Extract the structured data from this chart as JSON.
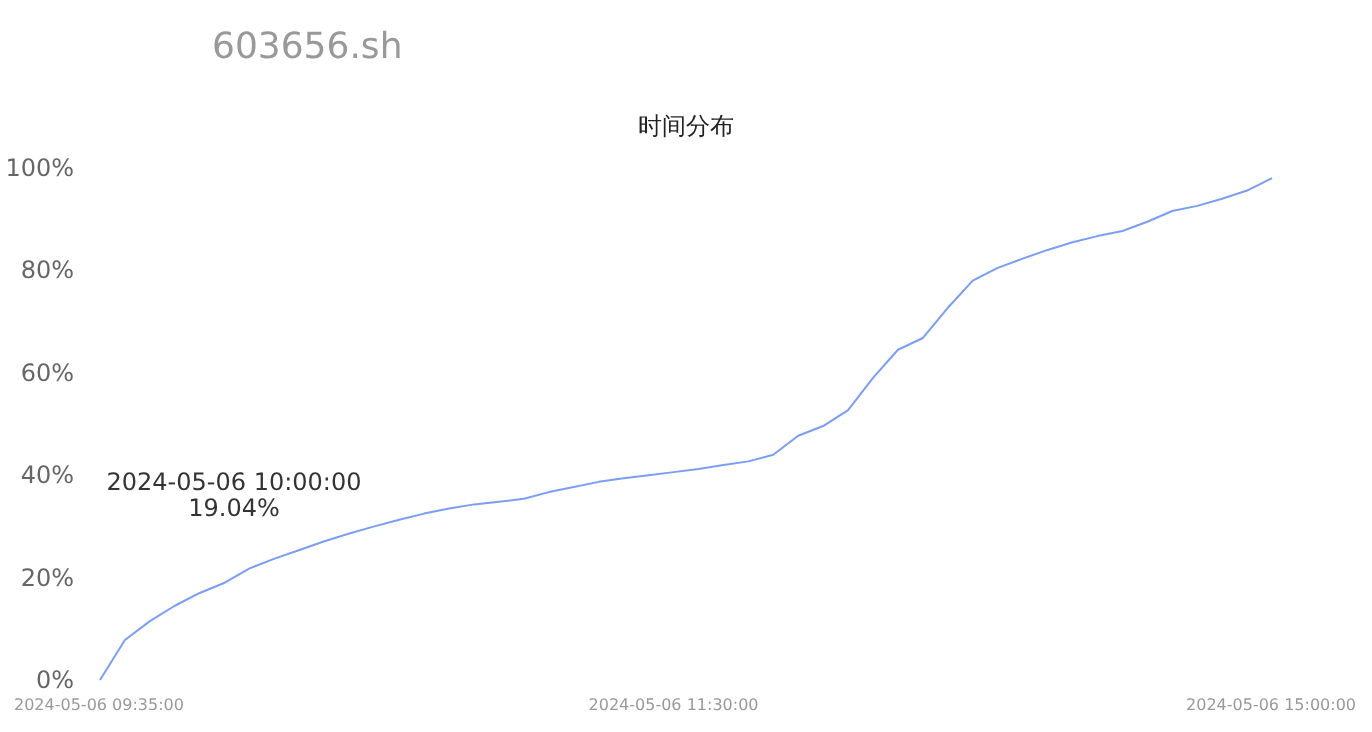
{
  "chart_data": {
    "type": "line",
    "title": "603656.sh",
    "subtitle": "时间分布",
    "categories": [
      "2024-05-06 09:35:00",
      null,
      null,
      null,
      null,
      null,
      null,
      null,
      null,
      null,
      null,
      null,
      null,
      null,
      null,
      null,
      null,
      null,
      null,
      null,
      null,
      null,
      null,
      "2024-05-06 11:30:00",
      null,
      null,
      null,
      null,
      null,
      null,
      null,
      null,
      null,
      null,
      null,
      null,
      null,
      null,
      null,
      null,
      null,
      null,
      null,
      null,
      null,
      null,
      null,
      "2024-05-06 15:00:00"
    ],
    "series": [
      {
        "color": "#7b9ef5",
        "values": [
          0,
          7.8,
          11.5,
          14.5,
          17,
          19,
          21.8,
          23.7,
          25.4,
          27.1,
          28.6,
          30,
          31.3,
          32.5,
          33.5,
          34.3,
          34.8,
          35.4,
          36.7,
          37.7,
          38.7,
          39.4,
          40,
          40.6,
          41.2,
          42,
          42.7,
          44,
          47.7,
          49.6,
          52.7,
          59,
          64.5,
          66.8,
          72.7,
          78,
          80.5,
          82.3,
          84,
          85.5,
          86.7,
          87.7,
          89.5,
          91.6,
          92.6,
          94,
          95.6,
          98
        ]
      }
    ],
    "ylim": [
      0,
      100
    ],
    "yticks": [
      {
        "value": 0,
        "label": "0%"
      },
      {
        "value": 20,
        "label": "20%"
      },
      {
        "value": 40,
        "label": "40%"
      },
      {
        "value": 60,
        "label": "60%"
      },
      {
        "value": 80,
        "label": "80%"
      },
      {
        "value": 100,
        "label": "100%"
      }
    ],
    "annotations": [
      "2024-05-06 10:00:00\n19.04%"
    ],
    "marker": "none",
    "line_style": "solid"
  }
}
